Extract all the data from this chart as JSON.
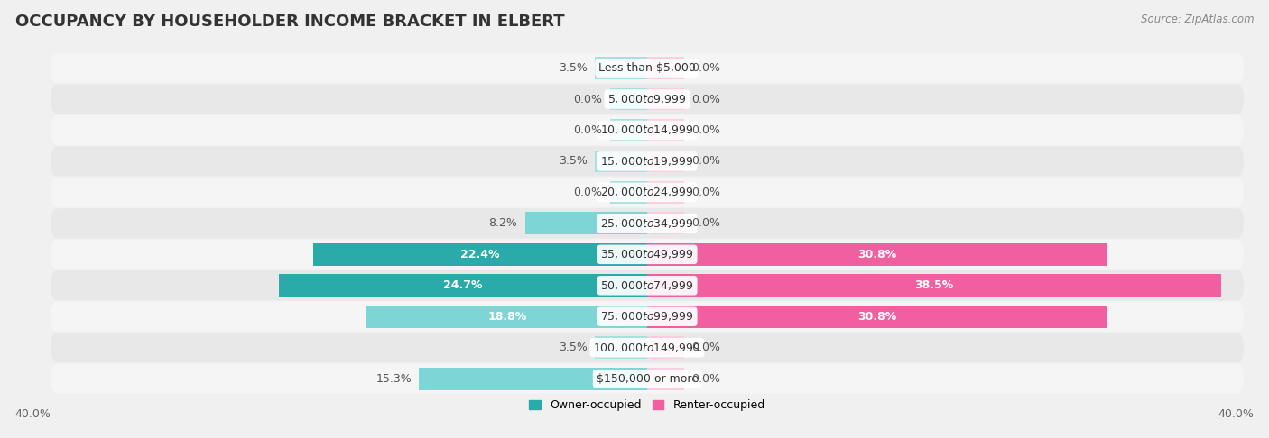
{
  "title": "OCCUPANCY BY HOUSEHOLDER INCOME BRACKET IN ELBERT",
  "source": "Source: ZipAtlas.com",
  "categories": [
    "Less than $5,000",
    "$5,000 to $9,999",
    "$10,000 to $14,999",
    "$15,000 to $19,999",
    "$20,000 to $24,999",
    "$25,000 to $34,999",
    "$35,000 to $49,999",
    "$50,000 to $74,999",
    "$75,000 to $99,999",
    "$100,000 to $149,999",
    "$150,000 or more"
  ],
  "owner_values": [
    3.5,
    0.0,
    0.0,
    3.5,
    0.0,
    8.2,
    22.4,
    24.7,
    18.8,
    3.5,
    15.3
  ],
  "renter_values": [
    0.0,
    0.0,
    0.0,
    0.0,
    0.0,
    0.0,
    30.8,
    38.5,
    30.8,
    0.0,
    0.0
  ],
  "owner_color_strong": "#2BAAAA",
  "owner_color_light": "#7DD5D5",
  "owner_color_faint": "#A8E0E0",
  "renter_color_strong": "#F060A0",
  "renter_color_light": "#F8A8C8",
  "renter_color_faint": "#FCCCE0",
  "row_bg_light": "#f5f5f5",
  "row_bg_dark": "#e8e8e8",
  "background_color": "#f0f0f0",
  "axis_max": 40.0,
  "stub_size": 2.5,
  "title_fontsize": 13,
  "bar_label_fontsize": 9,
  "cat_label_fontsize": 9,
  "tick_fontsize": 9,
  "legend_fontsize": 9,
  "source_fontsize": 8.5
}
